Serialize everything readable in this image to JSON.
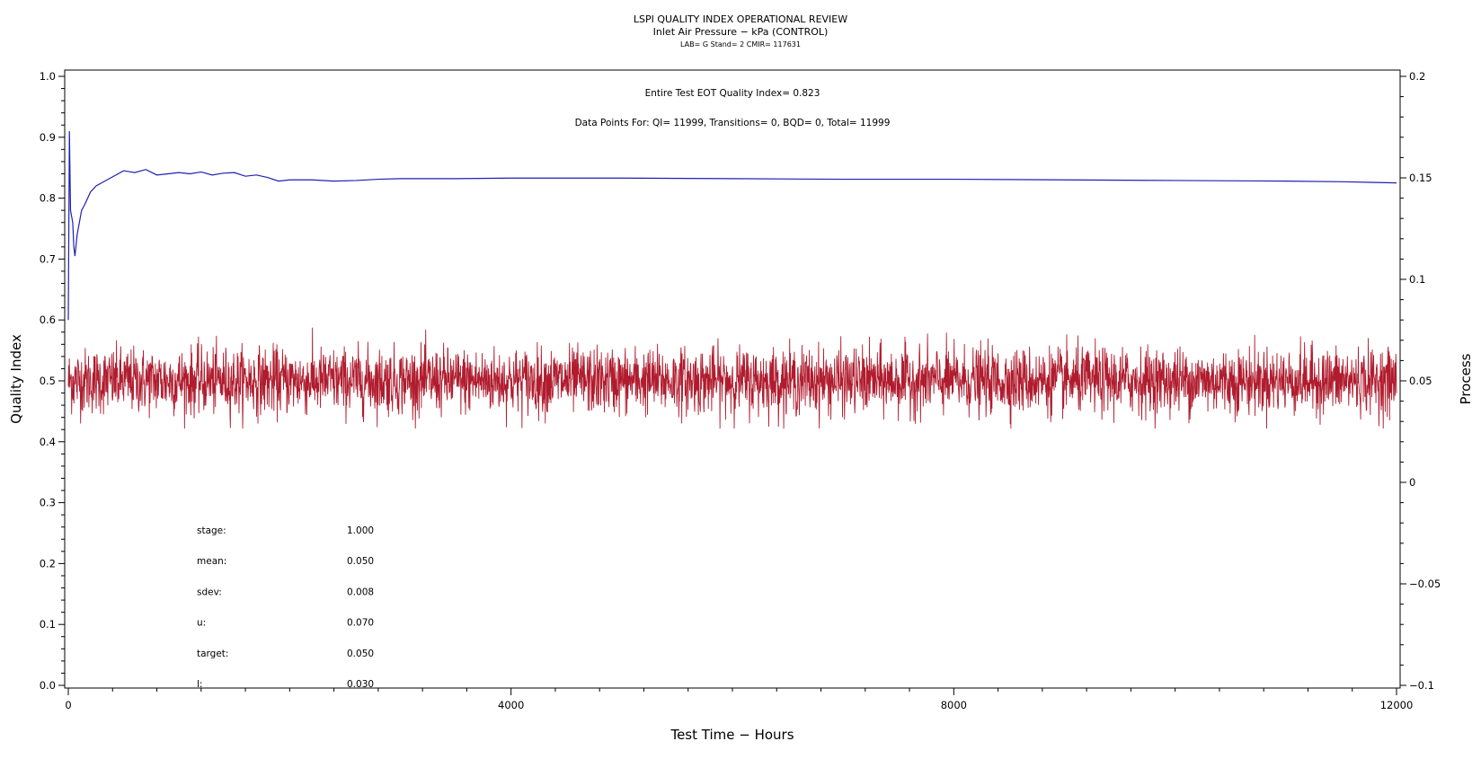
{
  "chart_data": {
    "type": "line",
    "title": "LSPI QUALITY INDEX OPERATIONAL REVIEW",
    "subtitle": "Inlet Air Pressure − kPa (CONTROL)",
    "subtitle2": "LAB= G Stand= 2 CMIR= 117631",
    "annotation_qi": "Entire Test EOT Quality Index=   0.823",
    "annotation_points": "Data Points For: QI= 11999, Transitions=     0, BQD=     0, Total= 11999",
    "xlabel": "Test Time − Hours",
    "ylabel_left": "Quality Index",
    "ylabel_right": "Process",
    "xlim": [
      0,
      12000
    ],
    "ylim_left": [
      0.0,
      1.0
    ],
    "ylim_right": [
      -0.1,
      0.2
    ],
    "x_ticks": [
      0,
      4000,
      8000,
      12000
    ],
    "x_tick_labels": [
      "0",
      "4000",
      "8000",
      "12000"
    ],
    "y_left_ticks": [
      0.0,
      0.1,
      0.2,
      0.3,
      0.4,
      0.5,
      0.6,
      0.7,
      0.8,
      0.9,
      1.0
    ],
    "y_left_tick_labels": [
      "0.0",
      "0.1",
      "0.2",
      "0.3",
      "0.4",
      "0.5",
      "0.6",
      "0.7",
      "0.8",
      "0.9",
      "1.0"
    ],
    "y_right_ticks": [
      -0.1,
      -0.05,
      0,
      0.05,
      0.1,
      0.15,
      0.2
    ],
    "y_right_tick_labels": [
      "−0.1",
      "−0.05",
      "0",
      "0.05",
      "0.1",
      "0.15",
      "0.2"
    ],
    "grid": false,
    "series": [
      {
        "name": "",
        "axis": "left",
        "color": "#1f1fb4",
        "x": [
          0,
          10,
          20,
          30,
          40,
          50,
          60,
          80,
          100,
          120,
          150,
          200,
          250,
          300,
          400,
          500,
          600,
          700,
          800,
          900,
          1000,
          1100,
          1200,
          1300,
          1400,
          1500,
          1600,
          1700,
          1800,
          1900,
          2000,
          2200,
          2400,
          2600,
          2800,
          3000,
          3500,
          4000,
          5000,
          6000,
          7000,
          8000,
          9000,
          10000,
          11000,
          11500,
          12000
        ],
        "y": [
          0.6,
          0.91,
          0.78,
          0.77,
          0.76,
          0.72,
          0.705,
          0.74,
          0.76,
          0.78,
          0.79,
          0.81,
          0.82,
          0.825,
          0.835,
          0.845,
          0.842,
          0.847,
          0.838,
          0.84,
          0.842,
          0.84,
          0.843,
          0.838,
          0.841,
          0.842,
          0.836,
          0.838,
          0.834,
          0.828,
          0.83,
          0.83,
          0.828,
          0.829,
          0.831,
          0.832,
          0.832,
          0.833,
          0.833,
          0.832,
          0.831,
          0.831,
          0.83,
          0.829,
          0.828,
          0.827,
          0.825
        ]
      },
      {
        "name": "",
        "axis": "right",
        "color": "#b01c2e",
        "samples": 11999,
        "mean": 0.05,
        "sdev": 0.008,
        "range": [
          0.0265,
          0.082
        ],
        "x_range": [
          0,
          12000
        ]
      }
    ],
    "stats": [
      {
        "label": "stage:",
        "value": "1.000"
      },
      {
        "label": "mean:",
        "value": "0.050"
      },
      {
        "label": "sdev:",
        "value": "0.008"
      },
      {
        "label": "u:",
        "value": "0.070"
      },
      {
        "label": "target:",
        "value": "0.050"
      },
      {
        "label": "l:",
        "value": "0.030"
      }
    ]
  }
}
